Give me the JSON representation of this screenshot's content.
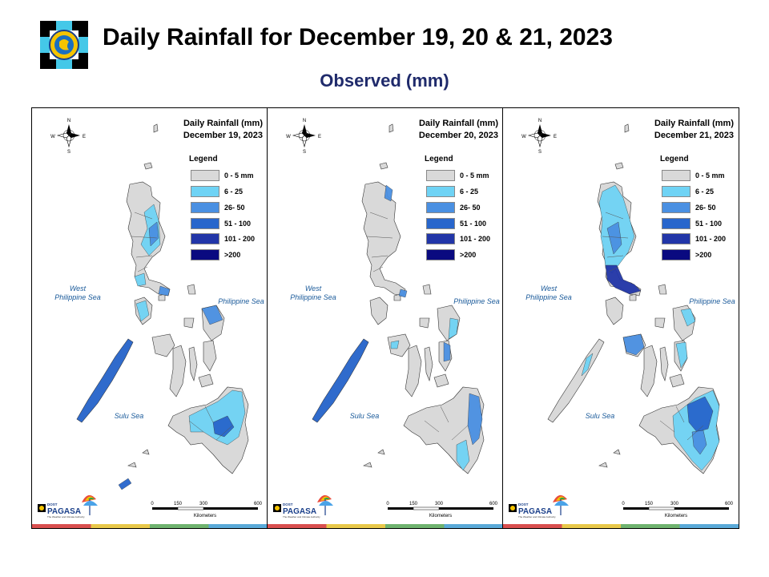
{
  "header": {
    "title": "Daily Rainfall for December 19, 20 & 21, 2023",
    "subtitle": "Observed (mm)"
  },
  "colors": {
    "c0": "#d9d9d9",
    "c1": "#6fd3f5",
    "c2": "#4a90e2",
    "c3": "#2866cc",
    "c4": "#2236a8",
    "c5": "#0a0a80",
    "sea_label": "#1a5a9a",
    "bar": [
      "#d94f4f",
      "#e8c84a",
      "#6fb36f",
      "#5aaad9"
    ]
  },
  "legend": {
    "title": "Legend",
    "items": [
      "0 - 5 mm",
      "6 - 25",
      "26- 50",
      "51 - 100",
      "101 - 200",
      ">200"
    ]
  },
  "seas": {
    "west_line1": "West",
    "west_line2": "Philippine Sea",
    "east": "Philippine Sea",
    "sulu": "Sulu Sea"
  },
  "compass": {
    "n": "N",
    "e": "E",
    "s": "S",
    "w": "W"
  },
  "scale": {
    "ticks": [
      "0",
      "150",
      "300",
      "600"
    ],
    "unit": "Kilometers"
  },
  "brand": {
    "small": "DOST",
    "pagasa": "PAGASA",
    "tag": "The Weather and Climate Authority"
  },
  "panels": [
    {
      "title_line1": "Daily Rainfall (mm)",
      "title_line2": "December 19, 2023"
    },
    {
      "title_line1": "Daily Rainfall (mm)",
      "title_line2": "December 20, 2023"
    },
    {
      "title_line1": "Daily Rainfall (mm)",
      "title_line2": "December 21, 2023"
    }
  ]
}
